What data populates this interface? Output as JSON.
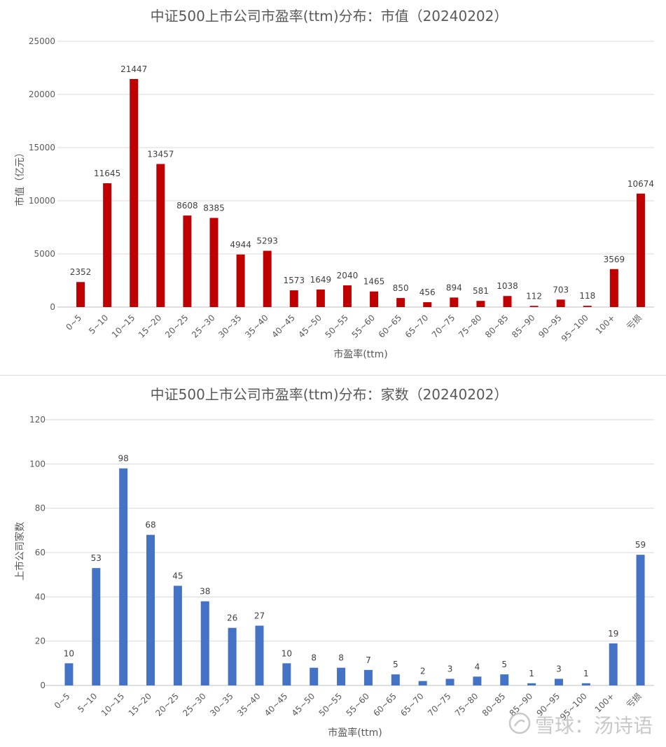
{
  "chart_data": [
    {
      "type": "bar",
      "title": "中证500上市公司市盈率(ttm)分布：市值（20240202）",
      "xlabel": "市盈率(ttm)",
      "ylabel": "市值（亿元）",
      "categories": [
        "0~5",
        "5~10",
        "10~15",
        "15~20",
        "20~25",
        "25~30",
        "30~35",
        "35~40",
        "40~45",
        "45~50",
        "50~55",
        "55~60",
        "60~65",
        "65~70",
        "70~75",
        "75~80",
        "80~85",
        "85~90",
        "90~95",
        "95~100",
        "100+",
        "亏损"
      ],
      "values": [
        2352,
        11645,
        21447,
        13457,
        8608,
        8385,
        4944,
        5293,
        1573,
        1649,
        2040,
        1465,
        850,
        456,
        894,
        581,
        1038,
        112,
        703,
        118,
        3569,
        10674
      ],
      "ylim": [
        0,
        25000
      ],
      "yticks": [
        "0",
        "5000",
        "10000",
        "15000",
        "20000",
        "25000"
      ],
      "grid": true,
      "color": "#c00000"
    },
    {
      "type": "bar",
      "title": "中证500上市公司市盈率(ttm)分布：家数（20240202）",
      "xlabel": "市盈率(ttm)",
      "ylabel": "上市公司家数",
      "categories": [
        "0~5",
        "5~10",
        "10~15",
        "15~20",
        "20~25",
        "25~30",
        "30~35",
        "35~40",
        "40~45",
        "45~50",
        "50~55",
        "55~60",
        "60~65",
        "65~70",
        "70~75",
        "75~80",
        "80~85",
        "85~90",
        "90~95",
        "95~100",
        "100+",
        "亏损"
      ],
      "values": [
        10,
        53,
        98,
        68,
        45,
        38,
        26,
        27,
        10,
        8,
        8,
        7,
        5,
        2,
        3,
        4,
        5,
        1,
        3,
        1,
        19,
        59
      ],
      "ylim": [
        0,
        120
      ],
      "yticks": [
        "0",
        "20",
        "40",
        "60",
        "80",
        "100",
        "120"
      ],
      "grid": true,
      "color": "#4472c4"
    }
  ],
  "watermark": {
    "text": "雪球：汤诗语",
    "icon": "snowball-logo-icon"
  }
}
